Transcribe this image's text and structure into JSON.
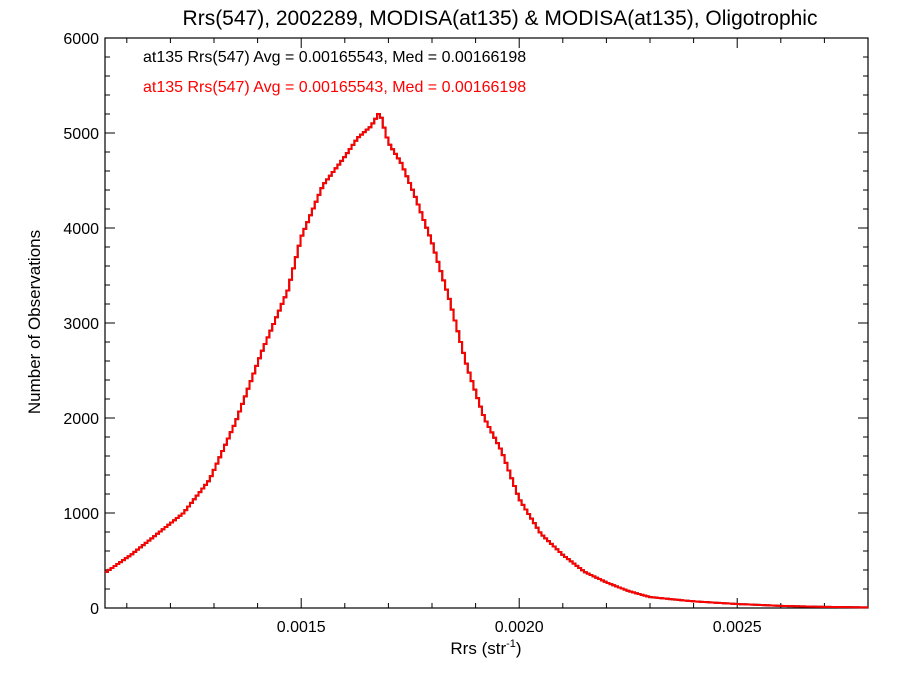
{
  "chart_data": {
    "type": "line",
    "style": "histogram-step",
    "title": "Rrs(547), 2002289, MODISA(at135) & MODISA(at135), Oligotrophic",
    "xlabel_main": "Rrs (str",
    "xlabel_sup": "-1",
    "xlabel_close": ")",
    "ylabel": "Number of Observations",
    "xlim": [
      0.00105,
      0.0028
    ],
    "ylim": [
      0,
      6000
    ],
    "x_ticks": [
      0.0015,
      0.002,
      0.0025
    ],
    "x_tick_labels": [
      "0.0015",
      "0.0020",
      "0.0025"
    ],
    "y_ticks": [
      0,
      1000,
      2000,
      3000,
      4000,
      5000,
      6000
    ],
    "y_tick_labels": [
      "0",
      "1000",
      "2000",
      "3000",
      "4000",
      "5000",
      "6000"
    ],
    "legend_placement": "top-left",
    "grid": false,
    "series": [
      {
        "name": "at135 Rrs(547) Avg = 0.00165543, Med = 0.00166198",
        "color": "#000000",
        "x": [
          0.00105,
          0.00111,
          0.00117,
          0.00123,
          0.00129,
          0.00135,
          0.00141,
          0.00147,
          0.0015,
          0.00155,
          0.0016,
          0.00163,
          0.00166,
          0.00168,
          0.0017,
          0.00173,
          0.00176,
          0.0018,
          0.00184,
          0.00188,
          0.00192,
          0.00196,
          0.002,
          0.00205,
          0.0021,
          0.00215,
          0.0022,
          0.00225,
          0.0023,
          0.0024,
          0.0025,
          0.0026,
          0.0027,
          0.0028
        ],
        "values": [
          370,
          560,
          780,
          1000,
          1350,
          1960,
          2700,
          3350,
          3900,
          4450,
          4750,
          4950,
          5070,
          5220,
          4900,
          4680,
          4350,
          3850,
          3250,
          2550,
          2000,
          1650,
          1150,
          780,
          560,
          380,
          270,
          180,
          115,
          70,
          42,
          22,
          12,
          6
        ]
      },
      {
        "name": "at135 Rrs(547) Avg = 0.00165543, Med = 0.00166198",
        "color": "#ff0000",
        "x": [
          0.00105,
          0.00111,
          0.00117,
          0.00123,
          0.00129,
          0.00135,
          0.00141,
          0.00147,
          0.0015,
          0.00155,
          0.0016,
          0.00163,
          0.00166,
          0.00168,
          0.0017,
          0.00173,
          0.00176,
          0.0018,
          0.00184,
          0.00188,
          0.00192,
          0.00196,
          0.002,
          0.00205,
          0.0021,
          0.00215,
          0.0022,
          0.00225,
          0.0023,
          0.0024,
          0.0025,
          0.0026,
          0.0027,
          0.0028
        ],
        "values": [
          370,
          560,
          780,
          1000,
          1350,
          1960,
          2700,
          3350,
          3900,
          4450,
          4750,
          4950,
          5070,
          5220,
          4900,
          4680,
          4350,
          3850,
          3250,
          2550,
          2000,
          1650,
          1150,
          780,
          560,
          380,
          270,
          180,
          115,
          70,
          42,
          22,
          12,
          6
        ]
      }
    ]
  }
}
